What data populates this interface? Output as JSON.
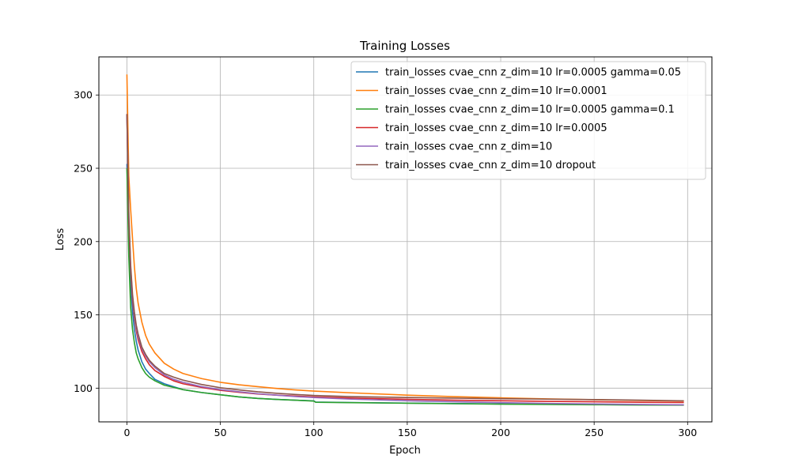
{
  "chart_data": {
    "type": "line",
    "title": "Training Losses",
    "xlabel": "Epoch",
    "ylabel": "Loss",
    "xlim": [
      -15,
      313
    ],
    "ylim": [
      77,
      326
    ],
    "xticks": [
      0,
      50,
      100,
      150,
      200,
      250,
      300
    ],
    "yticks": [
      100,
      150,
      200,
      250,
      300
    ],
    "grid": true,
    "legend_position": "top-right",
    "series": [
      {
        "name": "train_losses cvae_cnn z_dim=10 lr=0.0005 gamma=0.05",
        "color": "#1f77b4",
        "x": [
          0,
          1,
          2,
          3,
          4,
          5,
          6,
          8,
          10,
          12,
          15,
          20,
          25,
          30,
          40,
          50,
          60,
          70,
          80,
          90,
          100,
          101,
          120,
          150,
          175,
          200,
          225,
          250,
          275,
          298
        ],
        "y": [
          253,
          205,
          172,
          152,
          140,
          132,
          126,
          118,
          113,
          110,
          106,
          103,
          101,
          99,
          97,
          95.5,
          94,
          93,
          92.3,
          91.8,
          91.3,
          90.5,
          90.2,
          89.8,
          89.5,
          89.2,
          89,
          88.8,
          88.6,
          88.5
        ]
      },
      {
        "name": "train_losses cvae_cnn z_dim=10 lr=0.0001",
        "color": "#ff7f0e",
        "x": [
          0,
          1,
          2,
          3,
          4,
          5,
          6,
          8,
          10,
          12,
          15,
          20,
          25,
          30,
          40,
          50,
          60,
          70,
          80,
          90,
          100,
          120,
          150,
          175,
          200,
          225,
          250,
          275,
          298
        ],
        "y": [
          314,
          245,
          222,
          202,
          183,
          168,
          158,
          145,
          136,
          130,
          124,
          117,
          113,
          110,
          106.5,
          104,
          102.3,
          101,
          99.8,
          98.8,
          98,
          96.8,
          95.2,
          94.2,
          93.4,
          92.7,
          92.1,
          91.6,
          91.2
        ]
      },
      {
        "name": "train_losses cvae_cnn z_dim=10 lr=0.0005 gamma=0.1",
        "color": "#2ca02c",
        "x": [
          0,
          1,
          2,
          3,
          4,
          5,
          6,
          8,
          10,
          12,
          15,
          20,
          25,
          30,
          40,
          50,
          60,
          70,
          80,
          90,
          100,
          101,
          120,
          150,
          175,
          200,
          225,
          250,
          275,
          298
        ],
        "y": [
          250,
          190,
          155,
          140,
          131,
          124,
          120,
          114,
          110,
          107.5,
          105,
          102,
          100.5,
          99,
          97,
          95.5,
          94,
          93,
          92.3,
          91.8,
          91.2,
          90.4,
          90.1,
          89.7,
          89.4,
          89.1,
          88.9,
          88.7,
          88.5,
          88.4
        ]
      },
      {
        "name": "train_losses cvae_cnn z_dim=10 lr=0.0005",
        "color": "#d62728",
        "x": [
          0,
          1,
          2,
          3,
          4,
          5,
          6,
          8,
          10,
          12,
          15,
          20,
          25,
          30,
          40,
          50,
          60,
          70,
          80,
          90,
          100,
          120,
          150,
          175,
          200,
          225,
          250,
          275,
          298
        ],
        "y": [
          287,
          215,
          180,
          160,
          148,
          139,
          133,
          125,
          120,
          116,
          112,
          108,
          105,
          103,
          100.5,
          98.5,
          97.2,
          96,
          95.2,
          94.6,
          94,
          93.2,
          92.4,
          91.8,
          91.4,
          91,
          90.7,
          90.4,
          90.2
        ]
      },
      {
        "name": "train_losses cvae_cnn z_dim=10",
        "color": "#9467bd",
        "x": [
          0,
          1,
          2,
          3,
          4,
          5,
          6,
          8,
          10,
          12,
          15,
          20,
          25,
          30,
          40,
          50,
          60,
          70,
          80,
          90,
          100,
          120,
          150,
          175,
          200,
          225,
          250,
          275,
          298
        ],
        "y": [
          286,
          218,
          182,
          162,
          150,
          141,
          135,
          127,
          122,
          118,
          114,
          109,
          106,
          104,
          101,
          99,
          97.5,
          96.2,
          95.2,
          94.3,
          93.6,
          92.5,
          91.4,
          90.7,
          90.1,
          89.6,
          89.2,
          88.9,
          88.6
        ]
      },
      {
        "name": "train_losses cvae_cnn z_dim=10 dropout",
        "color": "#8c564b",
        "x": [
          0,
          1,
          2,
          3,
          4,
          5,
          6,
          8,
          10,
          12,
          15,
          20,
          25,
          30,
          40,
          50,
          60,
          70,
          80,
          90,
          100,
          120,
          150,
          175,
          200,
          225,
          250,
          275,
          298
        ],
        "y": [
          287,
          220,
          184,
          164,
          152,
          143,
          137,
          128,
          123,
          119,
          115,
          110,
          107.5,
          105.5,
          102.5,
          100.3,
          98.8,
          97.5,
          96.5,
          95.7,
          95,
          94.2,
          93.6,
          93.2,
          92.8,
          92.5,
          92.2,
          91.8,
          91.3
        ]
      }
    ]
  }
}
